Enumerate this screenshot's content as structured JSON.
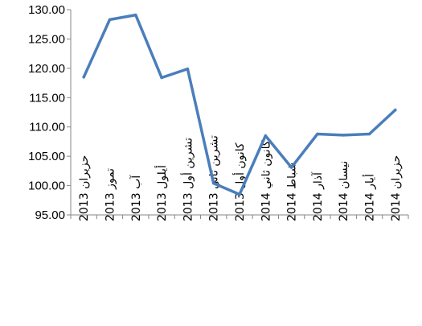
{
  "chart_data": {
    "type": "line",
    "title": "",
    "xlabel": "",
    "ylabel": "",
    "ylim": [
      95,
      130
    ],
    "ytick_step": 5,
    "ytick_labels": [
      "95.00",
      "100.00",
      "105.00",
      "110.00",
      "115.00",
      "120.00",
      "125.00",
      "130.00"
    ],
    "grid": false,
    "legend": "none",
    "categories": [
      "حزيران 2013",
      "تموز 2013",
      "آب 2013",
      "أيلول 2013",
      "تشرين أول 2013",
      "تشرين ثاني 2013",
      "كانون أول 2013",
      "كانون ثاني 2014",
      "شباط 2014",
      "آذار 2014",
      "نيسان 2014",
      "أيار 2014",
      "حزيران 2014"
    ],
    "series": [
      {
        "values": [
          118.5,
          128.3,
          129.1,
          118.4,
          119.9,
          100.4,
          98.5,
          108.5,
          103.1,
          108.8,
          108.6,
          108.8,
          112.9
        ],
        "color": "#4a7ebb"
      }
    ]
  }
}
